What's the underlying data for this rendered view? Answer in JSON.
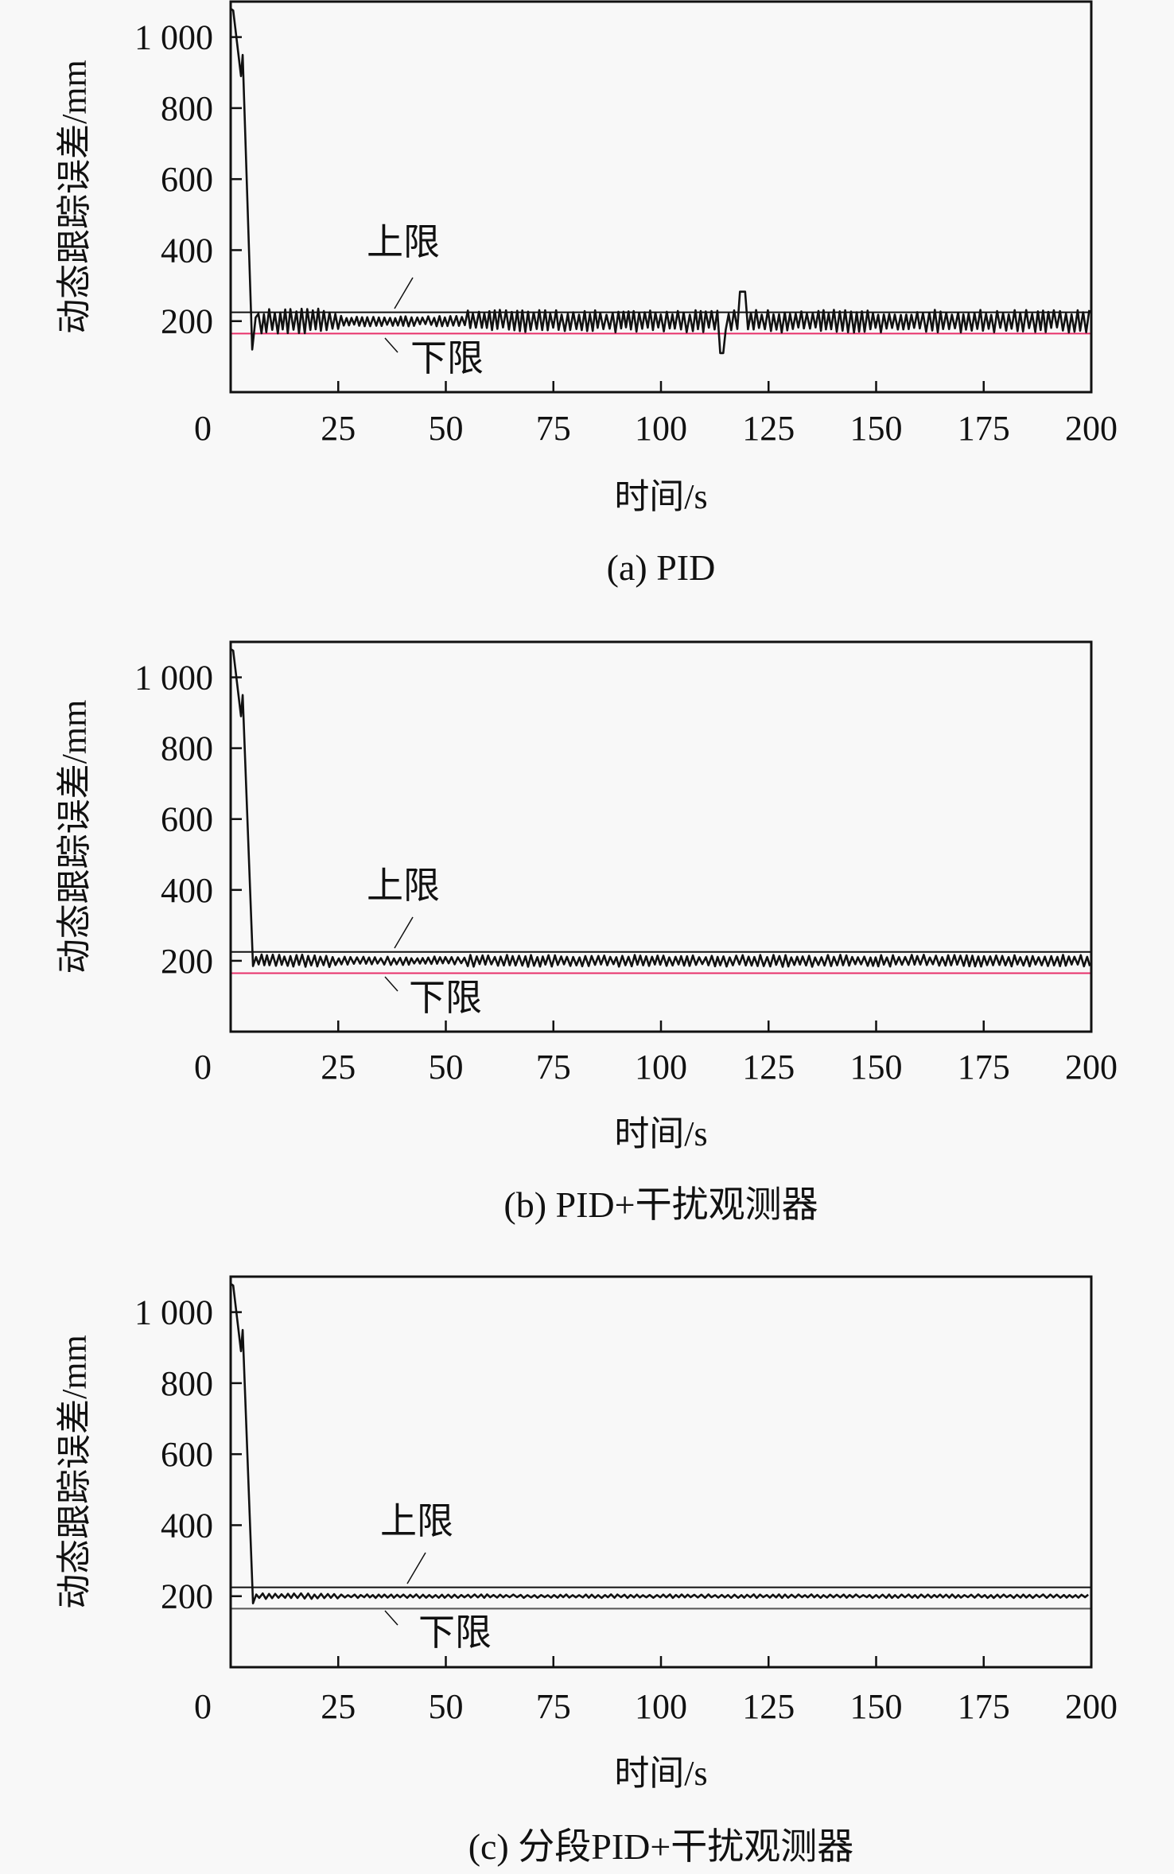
{
  "chart_data": [
    {
      "type": "line",
      "caption": "(a) PID",
      "xlabel": "时间/s",
      "ylabel": "动态跟踪误差/mm",
      "xlim": [
        0,
        200
      ],
      "ylim": [
        0,
        1100
      ],
      "xticks": [
        0,
        25,
        50,
        75,
        100,
        125,
        150,
        175,
        200
      ],
      "xtick_labels": [
        "0",
        "25",
        "50",
        "75",
        "100",
        "125",
        "150",
        "175",
        "200"
      ],
      "yticks": [
        200,
        400,
        600,
        800,
        1000
      ],
      "ytick_labels": [
        "200",
        "400",
        "600",
        "800",
        "1 000"
      ],
      "grid": false,
      "upper_limit": {
        "label": "上限",
        "value": 225,
        "color": "#111111"
      },
      "lower_limit": {
        "label": "下限",
        "value": 165,
        "color": "#e8306a"
      },
      "series": {
        "color": "#111111",
        "transient": [
          [
            0,
            1080
          ],
          [
            0.6,
            1075
          ],
          [
            2.4,
            890
          ],
          [
            2.8,
            950
          ],
          [
            5,
            120
          ],
          [
            5.8,
            210
          ]
        ],
        "steady_mean": 200,
        "oscillation_period": 1.3,
        "amplitude_segments": [
          [
            6,
            25,
            35
          ],
          [
            25,
            55,
            15
          ],
          [
            55,
            200,
            32
          ]
        ],
        "events": [
          [
            114.4,
            110
          ],
          [
            119,
            283
          ]
        ]
      }
    },
    {
      "type": "line",
      "caption": "(b) PID+干扰观测器",
      "xlabel": "时间/s",
      "ylabel": "动态跟踪误差/mm",
      "xlim": [
        0,
        200
      ],
      "ylim": [
        0,
        1100
      ],
      "xticks": [
        0,
        25,
        50,
        75,
        100,
        125,
        150,
        175,
        200
      ],
      "xtick_labels": [
        "0",
        "25",
        "50",
        "75",
        "100",
        "125",
        "150",
        "175",
        "200"
      ],
      "yticks": [
        200,
        400,
        600,
        800,
        1000
      ],
      "ytick_labels": [
        "200",
        "400",
        "600",
        "800",
        "1 000"
      ],
      "grid": false,
      "upper_limit": {
        "label": "上限",
        "value": 225,
        "color": "#111111"
      },
      "lower_limit": {
        "label": "下限",
        "value": 165,
        "color": "#e8306a"
      },
      "series": {
        "color": "#111111",
        "transient": [
          [
            0,
            1080
          ],
          [
            0.6,
            1075
          ],
          [
            2.4,
            890
          ],
          [
            2.8,
            950
          ],
          [
            5.2,
            185
          ]
        ],
        "steady_mean": 200,
        "oscillation_period": 1.4,
        "amplitude_segments": [
          [
            5.2,
            25,
            18
          ],
          [
            25,
            55,
            12
          ],
          [
            55,
            200,
            17
          ]
        ],
        "events": []
      }
    },
    {
      "type": "line",
      "caption": "(c) 分段PID+干扰观测器",
      "xlabel": "时间/s",
      "ylabel": "动态跟踪误差/mm",
      "xlim": [
        0,
        200
      ],
      "ylim": [
        0,
        1100
      ],
      "xticks": [
        0,
        25,
        50,
        75,
        100,
        125,
        150,
        175,
        200
      ],
      "xtick_labels": [
        "0",
        "25",
        "50",
        "75",
        "100",
        "125",
        "150",
        "175",
        "200"
      ],
      "yticks": [
        200,
        400,
        600,
        800,
        1000
      ],
      "ytick_labels": [
        "200",
        "400",
        "600",
        "800",
        "1 000"
      ],
      "grid": false,
      "upper_limit": {
        "label": "上限",
        "value": 225,
        "color": "#111111"
      },
      "lower_limit": {
        "label": "下限",
        "value": 165,
        "color": "#555555"
      },
      "series": {
        "color": "#111111",
        "transient": [
          [
            0,
            1080
          ],
          [
            0.6,
            1075
          ],
          [
            2.4,
            890
          ],
          [
            2.8,
            950
          ],
          [
            5.2,
            180
          ]
        ],
        "steady_mean": 200,
        "oscillation_period": 1.5,
        "amplitude_segments": [
          [
            5.2,
            25,
            8
          ],
          [
            25,
            200,
            5
          ]
        ],
        "events": []
      }
    }
  ]
}
